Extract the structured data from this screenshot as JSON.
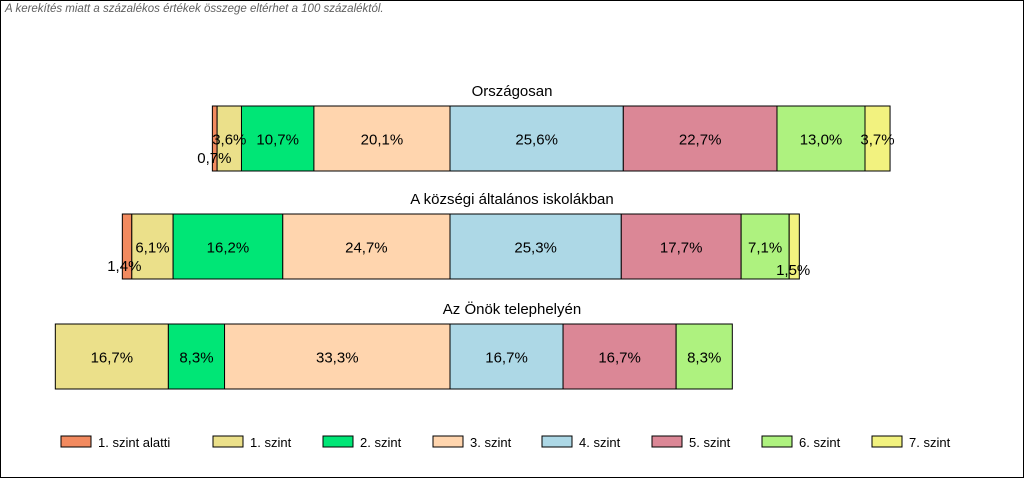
{
  "note": "A kerekítés miatt a  százalékos értékek összege eltérhet a 100 százaléktól.",
  "chart_data": {
    "type": "bar",
    "orientation": "horizontal",
    "stacked": true,
    "diverging": true,
    "center_boundary": "between 3. szint and 4. szint",
    "legend_position": "bottom",
    "categories": [
      "1. szint alatti",
      "1. szint",
      "2. szint",
      "3. szint",
      "4. szint",
      "5. szint",
      "6. szint",
      "7. szint"
    ],
    "colors": [
      "#F28A5F",
      "#EBE08A",
      "#00E676",
      "#FFD5AE",
      "#ADD8E6",
      "#DB8796",
      "#AEF27F",
      "#F2F27F"
    ],
    "groups": [
      {
        "title": "Országosan",
        "values": [
          0.7,
          3.6,
          10.7,
          20.1,
          25.6,
          22.7,
          13.0,
          3.7
        ],
        "labels": [
          "0,7%",
          "3,6%",
          "10,7%",
          "20,1%",
          "25,6%",
          "22,7%",
          "13,0%",
          "3,7%"
        ]
      },
      {
        "title": "A községi általános iskolákban",
        "values": [
          1.4,
          6.1,
          16.2,
          24.7,
          25.3,
          17.7,
          7.1,
          1.5
        ],
        "labels": [
          "1,4%",
          "6,1%",
          "16,2%",
          "24,7%",
          "25,3%",
          "17,7%",
          "7,1%",
          "1,5%"
        ]
      },
      {
        "title": "Az Önök telephelyén",
        "values": [
          0,
          16.7,
          8.3,
          33.3,
          16.7,
          16.7,
          8.3,
          0
        ],
        "labels": [
          "",
          "16,7%",
          "8,3%",
          "33,3%",
          "16,7%",
          "16,7%",
          "8,3%",
          ""
        ]
      }
    ]
  }
}
